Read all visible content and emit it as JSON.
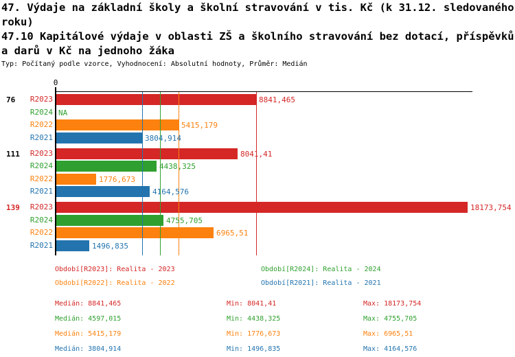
{
  "header": {
    "title1": "47. Výdaje na základní školy a školní stravování v tis. Kč (k 31.12. sledovaného roku)",
    "title2": "47.10 Kapitálové výdaje v oblasti ZŠ a školního stravování bez dotací, příspěvků a darů v Kč na jednoho žáka",
    "meta": "Typ: Počítaný podle vzorce, Vyhodnocení: Absolutní hodnoty, Průměr: Medián"
  },
  "colors": {
    "R2023": "#d42726",
    "R2024": "#2fa02f",
    "R2022": "#fc810e",
    "R2021": "#2374ae",
    "axis": "#000000"
  },
  "chart_data": {
    "type": "bar",
    "orientation": "horizontal",
    "axis": {
      "zero_label": "0",
      "xmax_value": 18173.754
    },
    "series_order": [
      "R2023",
      "R2024",
      "R2022",
      "R2021"
    ],
    "groups": [
      {
        "label": "76",
        "label_color": "#000000",
        "bars": [
          {
            "series": "R2023",
            "value": 8841.465,
            "value_label": "8841,465"
          },
          {
            "series": "R2024",
            "value": null,
            "value_label": "NA"
          },
          {
            "series": "R2022",
            "value": 5415.179,
            "value_label": "5415,179"
          },
          {
            "series": "R2021",
            "value": 3804.914,
            "value_label": "3804,914"
          }
        ]
      },
      {
        "label": "111",
        "label_color": "#000000",
        "bars": [
          {
            "series": "R2023",
            "value": 8041.41,
            "value_label": "8041,41"
          },
          {
            "series": "R2024",
            "value": 4438.325,
            "value_label": "4438,325"
          },
          {
            "series": "R2022",
            "value": 1776.673,
            "value_label": "1776,673"
          },
          {
            "series": "R2021",
            "value": 4164.576,
            "value_label": "4164,576"
          }
        ]
      },
      {
        "label": "139",
        "label_color": "#d42726",
        "bars": [
          {
            "series": "R2023",
            "value": 18173.754,
            "value_label": "18173,754"
          },
          {
            "series": "R2024",
            "value": 4755.705,
            "value_label": "4755,705"
          },
          {
            "series": "R2022",
            "value": 6965.51,
            "value_label": "6965,51"
          },
          {
            "series": "R2021",
            "value": 1496.835,
            "value_label": "1496,835"
          }
        ]
      }
    ],
    "median_lines": [
      {
        "series": "R2021",
        "value": 3804.914
      },
      {
        "series": "R2024",
        "value": 4597.015
      },
      {
        "series": "R2022",
        "value": 5415.179
      },
      {
        "series": "R2023",
        "value": 8841.465
      }
    ],
    "statistics": {
      "R2023": {
        "median": 8841.465,
        "min": 8041.41,
        "max": 18173.754
      },
      "R2024": {
        "median": 4597.015,
        "min": 4438.325,
        "max": 4755.705
      },
      "R2022": {
        "median": 5415.179,
        "min": 1776.673,
        "max": 6965.51
      },
      "R2021": {
        "median": 3804.914,
        "min": 1496.835,
        "max": 4164.576
      }
    }
  },
  "legend": {
    "items": [
      {
        "series": "R2023",
        "label": "Období[R2023]: Realita - 2023"
      },
      {
        "series": "R2024",
        "label": "Období[R2024]: Realita - 2024"
      },
      {
        "series": "R2022",
        "label": "Období[R2022]: Realita - 2022"
      },
      {
        "series": "R2021",
        "label": "Období[R2021]: Realita - 2021"
      }
    ]
  },
  "stats_table": {
    "rows": [
      {
        "series": "R2023",
        "median": "Medián: 8841,465",
        "min": "Min: 8041,41",
        "max": "Max: 18173,754"
      },
      {
        "series": "R2024",
        "median": "Medián: 4597,015",
        "min": "Min: 4438,325",
        "max": "Max: 4755,705"
      },
      {
        "series": "R2022",
        "median": "Medián: 5415,179",
        "min": "Min: 1776,673",
        "max": "Max: 6965,51"
      },
      {
        "series": "R2021",
        "median": "Medián: 3804,914",
        "min": "Min: 1496,835",
        "max": "Max: 4164,576"
      }
    ]
  }
}
